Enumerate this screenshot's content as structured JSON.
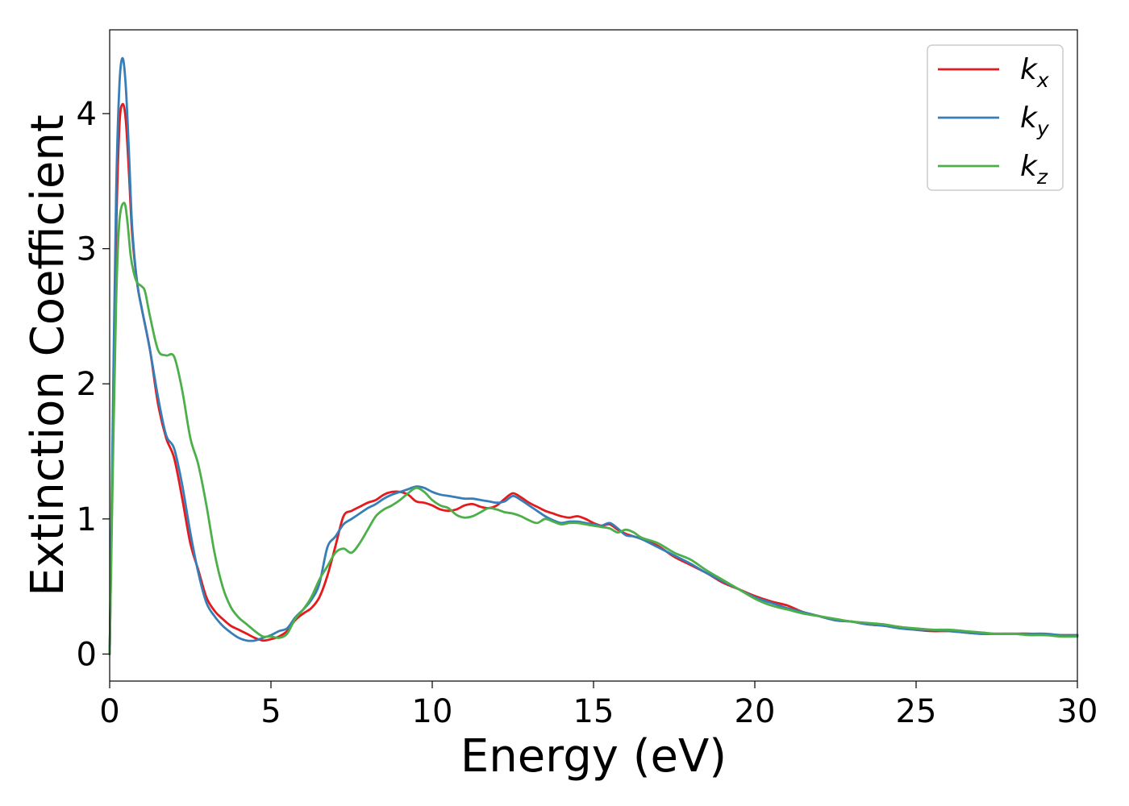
{
  "chart_data": {
    "type": "line",
    "xlabel": "Energy (eV)",
    "ylabel": "Extinction Coefficient",
    "xlim": [
      0,
      30
    ],
    "ylim": [
      -0.2,
      4.62
    ],
    "xticks": [
      0,
      5,
      10,
      15,
      20,
      25,
      30
    ],
    "yticks": [
      0,
      1,
      2,
      3,
      4
    ],
    "grid": false,
    "legend_position": "top-right",
    "series": [
      {
        "name": "k_x",
        "label_main": "k",
        "label_sub": "x",
        "color": "#e41a1c",
        "points": [
          [
            0,
            0
          ],
          [
            0.1,
            1.6
          ],
          [
            0.2,
            3.1
          ],
          [
            0.3,
            3.9
          ],
          [
            0.4,
            4.07
          ],
          [
            0.5,
            3.95
          ],
          [
            0.6,
            3.55
          ],
          [
            0.7,
            3.1
          ],
          [
            0.85,
            2.75
          ],
          [
            1.0,
            2.55
          ],
          [
            1.25,
            2.25
          ],
          [
            1.5,
            1.85
          ],
          [
            1.75,
            1.6
          ],
          [
            2.0,
            1.45
          ],
          [
            2.25,
            1.15
          ],
          [
            2.5,
            0.82
          ],
          [
            2.75,
            0.62
          ],
          [
            3.0,
            0.42
          ],
          [
            3.25,
            0.32
          ],
          [
            3.5,
            0.26
          ],
          [
            3.75,
            0.21
          ],
          [
            4.0,
            0.18
          ],
          [
            4.25,
            0.15
          ],
          [
            4.5,
            0.12
          ],
          [
            4.75,
            0.1
          ],
          [
            5.0,
            0.11
          ],
          [
            5.25,
            0.13
          ],
          [
            5.5,
            0.17
          ],
          [
            5.75,
            0.25
          ],
          [
            6.0,
            0.3
          ],
          [
            6.25,
            0.34
          ],
          [
            6.5,
            0.42
          ],
          [
            6.75,
            0.58
          ],
          [
            7.0,
            0.8
          ],
          [
            7.25,
            1.02
          ],
          [
            7.5,
            1.06
          ],
          [
            7.75,
            1.09
          ],
          [
            8.0,
            1.12
          ],
          [
            8.25,
            1.14
          ],
          [
            8.5,
            1.18
          ],
          [
            8.75,
            1.2
          ],
          [
            9.0,
            1.2
          ],
          [
            9.25,
            1.18
          ],
          [
            9.5,
            1.13
          ],
          [
            9.75,
            1.12
          ],
          [
            10.0,
            1.1
          ],
          [
            10.25,
            1.07
          ],
          [
            10.5,
            1.06
          ],
          [
            10.75,
            1.07
          ],
          [
            11.0,
            1.1
          ],
          [
            11.25,
            1.11
          ],
          [
            11.5,
            1.09
          ],
          [
            11.75,
            1.08
          ],
          [
            12.0,
            1.1
          ],
          [
            12.25,
            1.15
          ],
          [
            12.5,
            1.19
          ],
          [
            12.75,
            1.16
          ],
          [
            13.0,
            1.12
          ],
          [
            13.25,
            1.09
          ],
          [
            13.5,
            1.06
          ],
          [
            13.75,
            1.04
          ],
          [
            14.0,
            1.02
          ],
          [
            14.25,
            1.01
          ],
          [
            14.5,
            1.02
          ],
          [
            14.75,
            1.0
          ],
          [
            15.0,
            0.97
          ],
          [
            15.25,
            0.95
          ],
          [
            15.5,
            0.96
          ],
          [
            15.75,
            0.92
          ],
          [
            16.0,
            0.89
          ],
          [
            16.25,
            0.87
          ],
          [
            16.5,
            0.85
          ],
          [
            17.0,
            0.8
          ],
          [
            17.5,
            0.72
          ],
          [
            18.0,
            0.66
          ],
          [
            18.5,
            0.6
          ],
          [
            19.0,
            0.53
          ],
          [
            19.5,
            0.48
          ],
          [
            20.0,
            0.43
          ],
          [
            20.5,
            0.39
          ],
          [
            21.0,
            0.36
          ],
          [
            21.5,
            0.31
          ],
          [
            22.0,
            0.28
          ],
          [
            22.5,
            0.25
          ],
          [
            23.0,
            0.24
          ],
          [
            23.5,
            0.22
          ],
          [
            24.0,
            0.21
          ],
          [
            24.5,
            0.2
          ],
          [
            25.0,
            0.18
          ],
          [
            25.5,
            0.17
          ],
          [
            26.0,
            0.17
          ],
          [
            26.5,
            0.16
          ],
          [
            27.0,
            0.15
          ],
          [
            27.5,
            0.15
          ],
          [
            28.0,
            0.15
          ],
          [
            28.5,
            0.15
          ],
          [
            29.0,
            0.14
          ],
          [
            29.5,
            0.14
          ],
          [
            30.0,
            0.14
          ]
        ]
      },
      {
        "name": "k_y",
        "label_main": "k",
        "label_sub": "y",
        "color": "#377eb8",
        "points": [
          [
            0,
            0
          ],
          [
            0.1,
            1.8
          ],
          [
            0.2,
            3.4
          ],
          [
            0.3,
            4.2
          ],
          [
            0.4,
            4.41
          ],
          [
            0.5,
            4.2
          ],
          [
            0.6,
            3.7
          ],
          [
            0.7,
            3.15
          ],
          [
            0.85,
            2.75
          ],
          [
            1.0,
            2.55
          ],
          [
            1.25,
            2.25
          ],
          [
            1.5,
            1.9
          ],
          [
            1.75,
            1.62
          ],
          [
            2.0,
            1.52
          ],
          [
            2.25,
            1.25
          ],
          [
            2.5,
            0.9
          ],
          [
            2.75,
            0.6
          ],
          [
            3.0,
            0.38
          ],
          [
            3.25,
            0.28
          ],
          [
            3.5,
            0.21
          ],
          [
            3.75,
            0.16
          ],
          [
            4.0,
            0.12
          ],
          [
            4.25,
            0.1
          ],
          [
            4.5,
            0.1
          ],
          [
            4.75,
            0.12
          ],
          [
            5.0,
            0.14
          ],
          [
            5.25,
            0.17
          ],
          [
            5.5,
            0.19
          ],
          [
            5.75,
            0.27
          ],
          [
            6.0,
            0.33
          ],
          [
            6.25,
            0.4
          ],
          [
            6.5,
            0.52
          ],
          [
            6.75,
            0.79
          ],
          [
            7.0,
            0.87
          ],
          [
            7.25,
            0.96
          ],
          [
            7.5,
            1.0
          ],
          [
            7.75,
            1.04
          ],
          [
            8.0,
            1.08
          ],
          [
            8.25,
            1.11
          ],
          [
            8.5,
            1.15
          ],
          [
            8.75,
            1.18
          ],
          [
            9.0,
            1.2
          ],
          [
            9.25,
            1.22
          ],
          [
            9.5,
            1.24
          ],
          [
            9.75,
            1.23
          ],
          [
            10.0,
            1.2
          ],
          [
            10.25,
            1.18
          ],
          [
            10.5,
            1.17
          ],
          [
            10.75,
            1.16
          ],
          [
            11.0,
            1.15
          ],
          [
            11.25,
            1.15
          ],
          [
            11.5,
            1.14
          ],
          [
            11.75,
            1.13
          ],
          [
            12.0,
            1.12
          ],
          [
            12.25,
            1.13
          ],
          [
            12.5,
            1.17
          ],
          [
            12.75,
            1.14
          ],
          [
            13.0,
            1.1
          ],
          [
            13.25,
            1.06
          ],
          [
            13.5,
            1.02
          ],
          [
            13.75,
            0.99
          ],
          [
            14.0,
            0.97
          ],
          [
            14.25,
            0.98
          ],
          [
            14.5,
            0.98
          ],
          [
            14.75,
            0.97
          ],
          [
            15.0,
            0.96
          ],
          [
            15.25,
            0.95
          ],
          [
            15.5,
            0.97
          ],
          [
            15.75,
            0.93
          ],
          [
            16.0,
            0.88
          ],
          [
            16.25,
            0.87
          ],
          [
            16.5,
            0.85
          ],
          [
            17.0,
            0.79
          ],
          [
            17.5,
            0.73
          ],
          [
            18.0,
            0.67
          ],
          [
            18.5,
            0.6
          ],
          [
            19.0,
            0.54
          ],
          [
            19.5,
            0.48
          ],
          [
            20.0,
            0.42
          ],
          [
            20.5,
            0.38
          ],
          [
            21.0,
            0.34
          ],
          [
            21.5,
            0.31
          ],
          [
            22.0,
            0.28
          ],
          [
            22.5,
            0.25
          ],
          [
            23.0,
            0.24
          ],
          [
            23.5,
            0.22
          ],
          [
            24.0,
            0.21
          ],
          [
            24.5,
            0.19
          ],
          [
            25.0,
            0.18
          ],
          [
            25.5,
            0.18
          ],
          [
            26.0,
            0.17
          ],
          [
            26.5,
            0.16
          ],
          [
            27.0,
            0.15
          ],
          [
            27.5,
            0.15
          ],
          [
            28.0,
            0.15
          ],
          [
            28.5,
            0.15
          ],
          [
            29.0,
            0.15
          ],
          [
            29.5,
            0.14
          ],
          [
            30.0,
            0.14
          ]
        ]
      },
      {
        "name": "k_z",
        "label_main": "k",
        "label_sub": "z",
        "color": "#4daf4a",
        "points": [
          [
            0,
            0
          ],
          [
            0.1,
            1.4
          ],
          [
            0.2,
            2.6
          ],
          [
            0.3,
            3.2
          ],
          [
            0.45,
            3.34
          ],
          [
            0.55,
            3.2
          ],
          [
            0.65,
            2.95
          ],
          [
            0.75,
            2.82
          ],
          [
            0.85,
            2.75
          ],
          [
            1.0,
            2.72
          ],
          [
            1.1,
            2.68
          ],
          [
            1.25,
            2.5
          ],
          [
            1.5,
            2.25
          ],
          [
            1.75,
            2.21
          ],
          [
            2.0,
            2.2
          ],
          [
            2.25,
            1.95
          ],
          [
            2.5,
            1.6
          ],
          [
            2.75,
            1.4
          ],
          [
            3.0,
            1.1
          ],
          [
            3.25,
            0.75
          ],
          [
            3.5,
            0.5
          ],
          [
            3.75,
            0.35
          ],
          [
            4.0,
            0.27
          ],
          [
            4.25,
            0.22
          ],
          [
            4.5,
            0.17
          ],
          [
            4.75,
            0.13
          ],
          [
            5.0,
            0.13
          ],
          [
            5.25,
            0.12
          ],
          [
            5.5,
            0.15
          ],
          [
            5.75,
            0.26
          ],
          [
            6.0,
            0.33
          ],
          [
            6.25,
            0.42
          ],
          [
            6.5,
            0.55
          ],
          [
            6.75,
            0.65
          ],
          [
            7.0,
            0.75
          ],
          [
            7.25,
            0.78
          ],
          [
            7.5,
            0.75
          ],
          [
            7.75,
            0.82
          ],
          [
            8.0,
            0.92
          ],
          [
            8.25,
            1.02
          ],
          [
            8.5,
            1.07
          ],
          [
            8.75,
            1.1
          ],
          [
            9.0,
            1.14
          ],
          [
            9.25,
            1.19
          ],
          [
            9.5,
            1.23
          ],
          [
            9.75,
            1.2
          ],
          [
            10.0,
            1.14
          ],
          [
            10.25,
            1.1
          ],
          [
            10.5,
            1.08
          ],
          [
            10.75,
            1.03
          ],
          [
            11.0,
            1.01
          ],
          [
            11.25,
            1.02
          ],
          [
            11.5,
            1.05
          ],
          [
            11.75,
            1.08
          ],
          [
            12.0,
            1.07
          ],
          [
            12.25,
            1.05
          ],
          [
            12.5,
            1.04
          ],
          [
            12.75,
            1.02
          ],
          [
            13.0,
            0.99
          ],
          [
            13.25,
            0.97
          ],
          [
            13.5,
            1.0
          ],
          [
            13.75,
            0.98
          ],
          [
            14.0,
            0.96
          ],
          [
            14.25,
            0.97
          ],
          [
            14.5,
            0.97
          ],
          [
            14.75,
            0.96
          ],
          [
            15.0,
            0.95
          ],
          [
            15.25,
            0.94
          ],
          [
            15.5,
            0.93
          ],
          [
            15.75,
            0.9
          ],
          [
            16.0,
            0.92
          ],
          [
            16.25,
            0.9
          ],
          [
            16.5,
            0.86
          ],
          [
            17.0,
            0.82
          ],
          [
            17.5,
            0.75
          ],
          [
            18.0,
            0.7
          ],
          [
            18.5,
            0.62
          ],
          [
            19.0,
            0.55
          ],
          [
            19.5,
            0.48
          ],
          [
            20.0,
            0.41
          ],
          [
            20.5,
            0.36
          ],
          [
            21.0,
            0.33
          ],
          [
            21.5,
            0.3
          ],
          [
            22.0,
            0.28
          ],
          [
            22.5,
            0.26
          ],
          [
            23.0,
            0.24
          ],
          [
            23.5,
            0.23
          ],
          [
            24.0,
            0.22
          ],
          [
            24.5,
            0.2
          ],
          [
            25.0,
            0.19
          ],
          [
            25.5,
            0.18
          ],
          [
            26.0,
            0.18
          ],
          [
            26.5,
            0.17
          ],
          [
            27.0,
            0.16
          ],
          [
            27.5,
            0.15
          ],
          [
            28.0,
            0.15
          ],
          [
            28.5,
            0.14
          ],
          [
            29.0,
            0.14
          ],
          [
            29.5,
            0.13
          ],
          [
            30.0,
            0.13
          ]
        ]
      }
    ]
  }
}
